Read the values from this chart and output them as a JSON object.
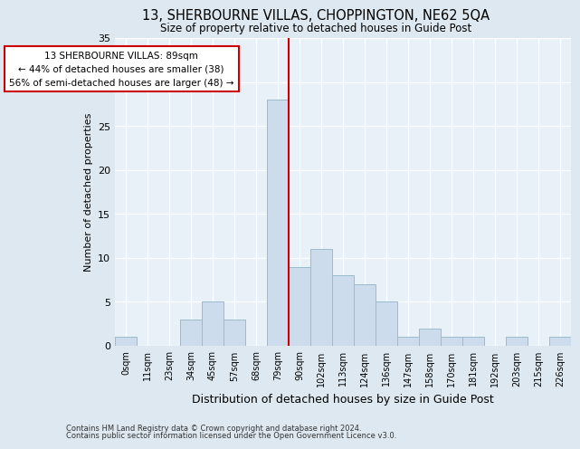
{
  "title": "13, SHERBOURNE VILLAS, CHOPPINGTON, NE62 5QA",
  "subtitle": "Size of property relative to detached houses in Guide Post",
  "xlabel": "Distribution of detached houses by size in Guide Post",
  "ylabel": "Number of detached properties",
  "bin_labels": [
    "0sqm",
    "11sqm",
    "23sqm",
    "34sqm",
    "45sqm",
    "57sqm",
    "68sqm",
    "79sqm",
    "90sqm",
    "102sqm",
    "113sqm",
    "124sqm",
    "136sqm",
    "147sqm",
    "158sqm",
    "170sqm",
    "181sqm",
    "192sqm",
    "203sqm",
    "215sqm",
    "226sqm"
  ],
  "bar_values": [
    1,
    0,
    0,
    3,
    5,
    3,
    0,
    28,
    9,
    11,
    8,
    7,
    5,
    1,
    2,
    1,
    1,
    0,
    1,
    0,
    1
  ],
  "bar_color": "#ccdcec",
  "bar_edge_color": "#99bbcc",
  "property_bin_index": 7,
  "annotation_title": "13 SHERBOURNE VILLAS: 89sqm",
  "annotation_line1": "← 44% of detached houses are smaller (38)",
  "annotation_line2": "56% of semi-detached houses are larger (48) →",
  "vline_color": "#cc0000",
  "annotation_box_edge_color": "#cc0000",
  "ylim": [
    0,
    35
  ],
  "yticks": [
    0,
    5,
    10,
    15,
    20,
    25,
    30,
    35
  ],
  "footnote1": "Contains HM Land Registry data © Crown copyright and database right 2024.",
  "footnote2": "Contains public sector information licensed under the Open Government Licence v3.0.",
  "bg_color": "#dde8f0",
  "plot_bg_color": "#e8f0f8",
  "grid_color": "#ffffff"
}
